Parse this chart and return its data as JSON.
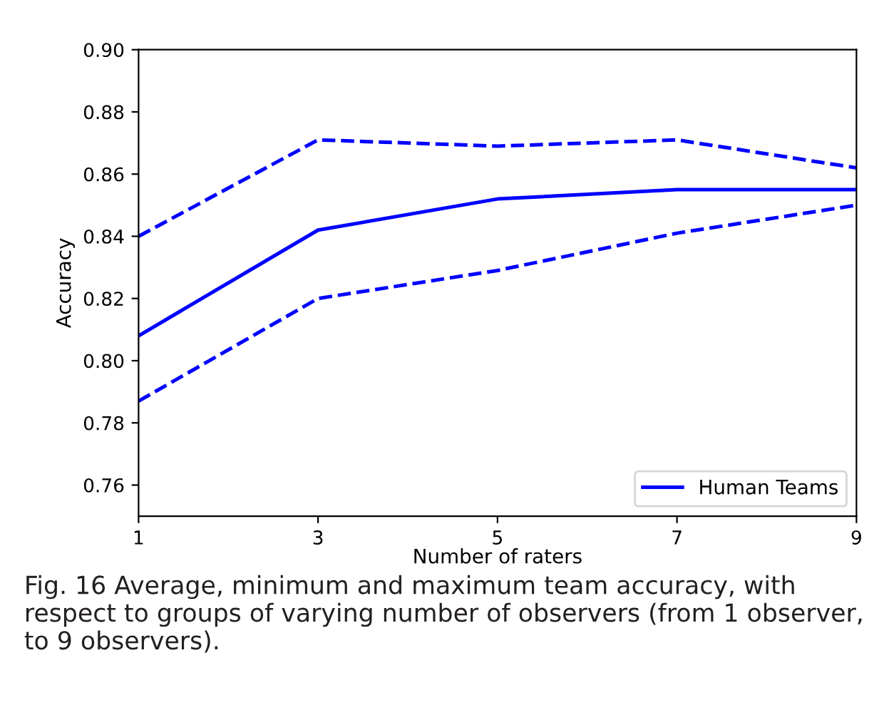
{
  "chart_data": {
    "type": "line",
    "xlabel": "Number of raters",
    "ylabel": "Accuracy",
    "x": [
      1,
      3,
      5,
      7,
      9
    ],
    "series": [
      {
        "name": "Human Teams",
        "color": "#0000ff",
        "values": [
          0.808,
          0.842,
          0.852,
          0.855,
          0.855
        ],
        "line_style": "solid"
      },
      {
        "color": "#0000ff",
        "values": [
          0.84,
          0.871,
          0.869,
          0.871,
          0.862
        ],
        "line_style": "dashed"
      },
      {
        "color": "#0000ff",
        "values": [
          0.787,
          0.82,
          0.829,
          0.841,
          0.85
        ],
        "line_style": "dashed"
      }
    ],
    "xlim": [
      1,
      9
    ],
    "xticks": [
      1,
      3,
      5,
      7,
      9
    ],
    "ylim": [
      0.75,
      0.9
    ],
    "yticks": [
      {
        "value": 0.76,
        "label": "0.76"
      },
      {
        "value": 0.78,
        "label": "0.78"
      },
      {
        "value": 0.8,
        "label": "0.80"
      },
      {
        "value": 0.82,
        "label": "0.82"
      },
      {
        "value": 0.84,
        "label": "0.84"
      },
      {
        "value": 0.86,
        "label": "0.86"
      },
      {
        "value": 0.88,
        "label": "0.88"
      },
      {
        "value": 0.9,
        "label": "0.90"
      }
    ],
    "grid": false,
    "legend": "bottom right",
    "marker": "none",
    "annotations": [
      "Fig. 16 Average, minimum and maximum team accuracy, with respect to groups of varying number of observers (from 1 observer, to 9 observers)."
    ]
  }
}
